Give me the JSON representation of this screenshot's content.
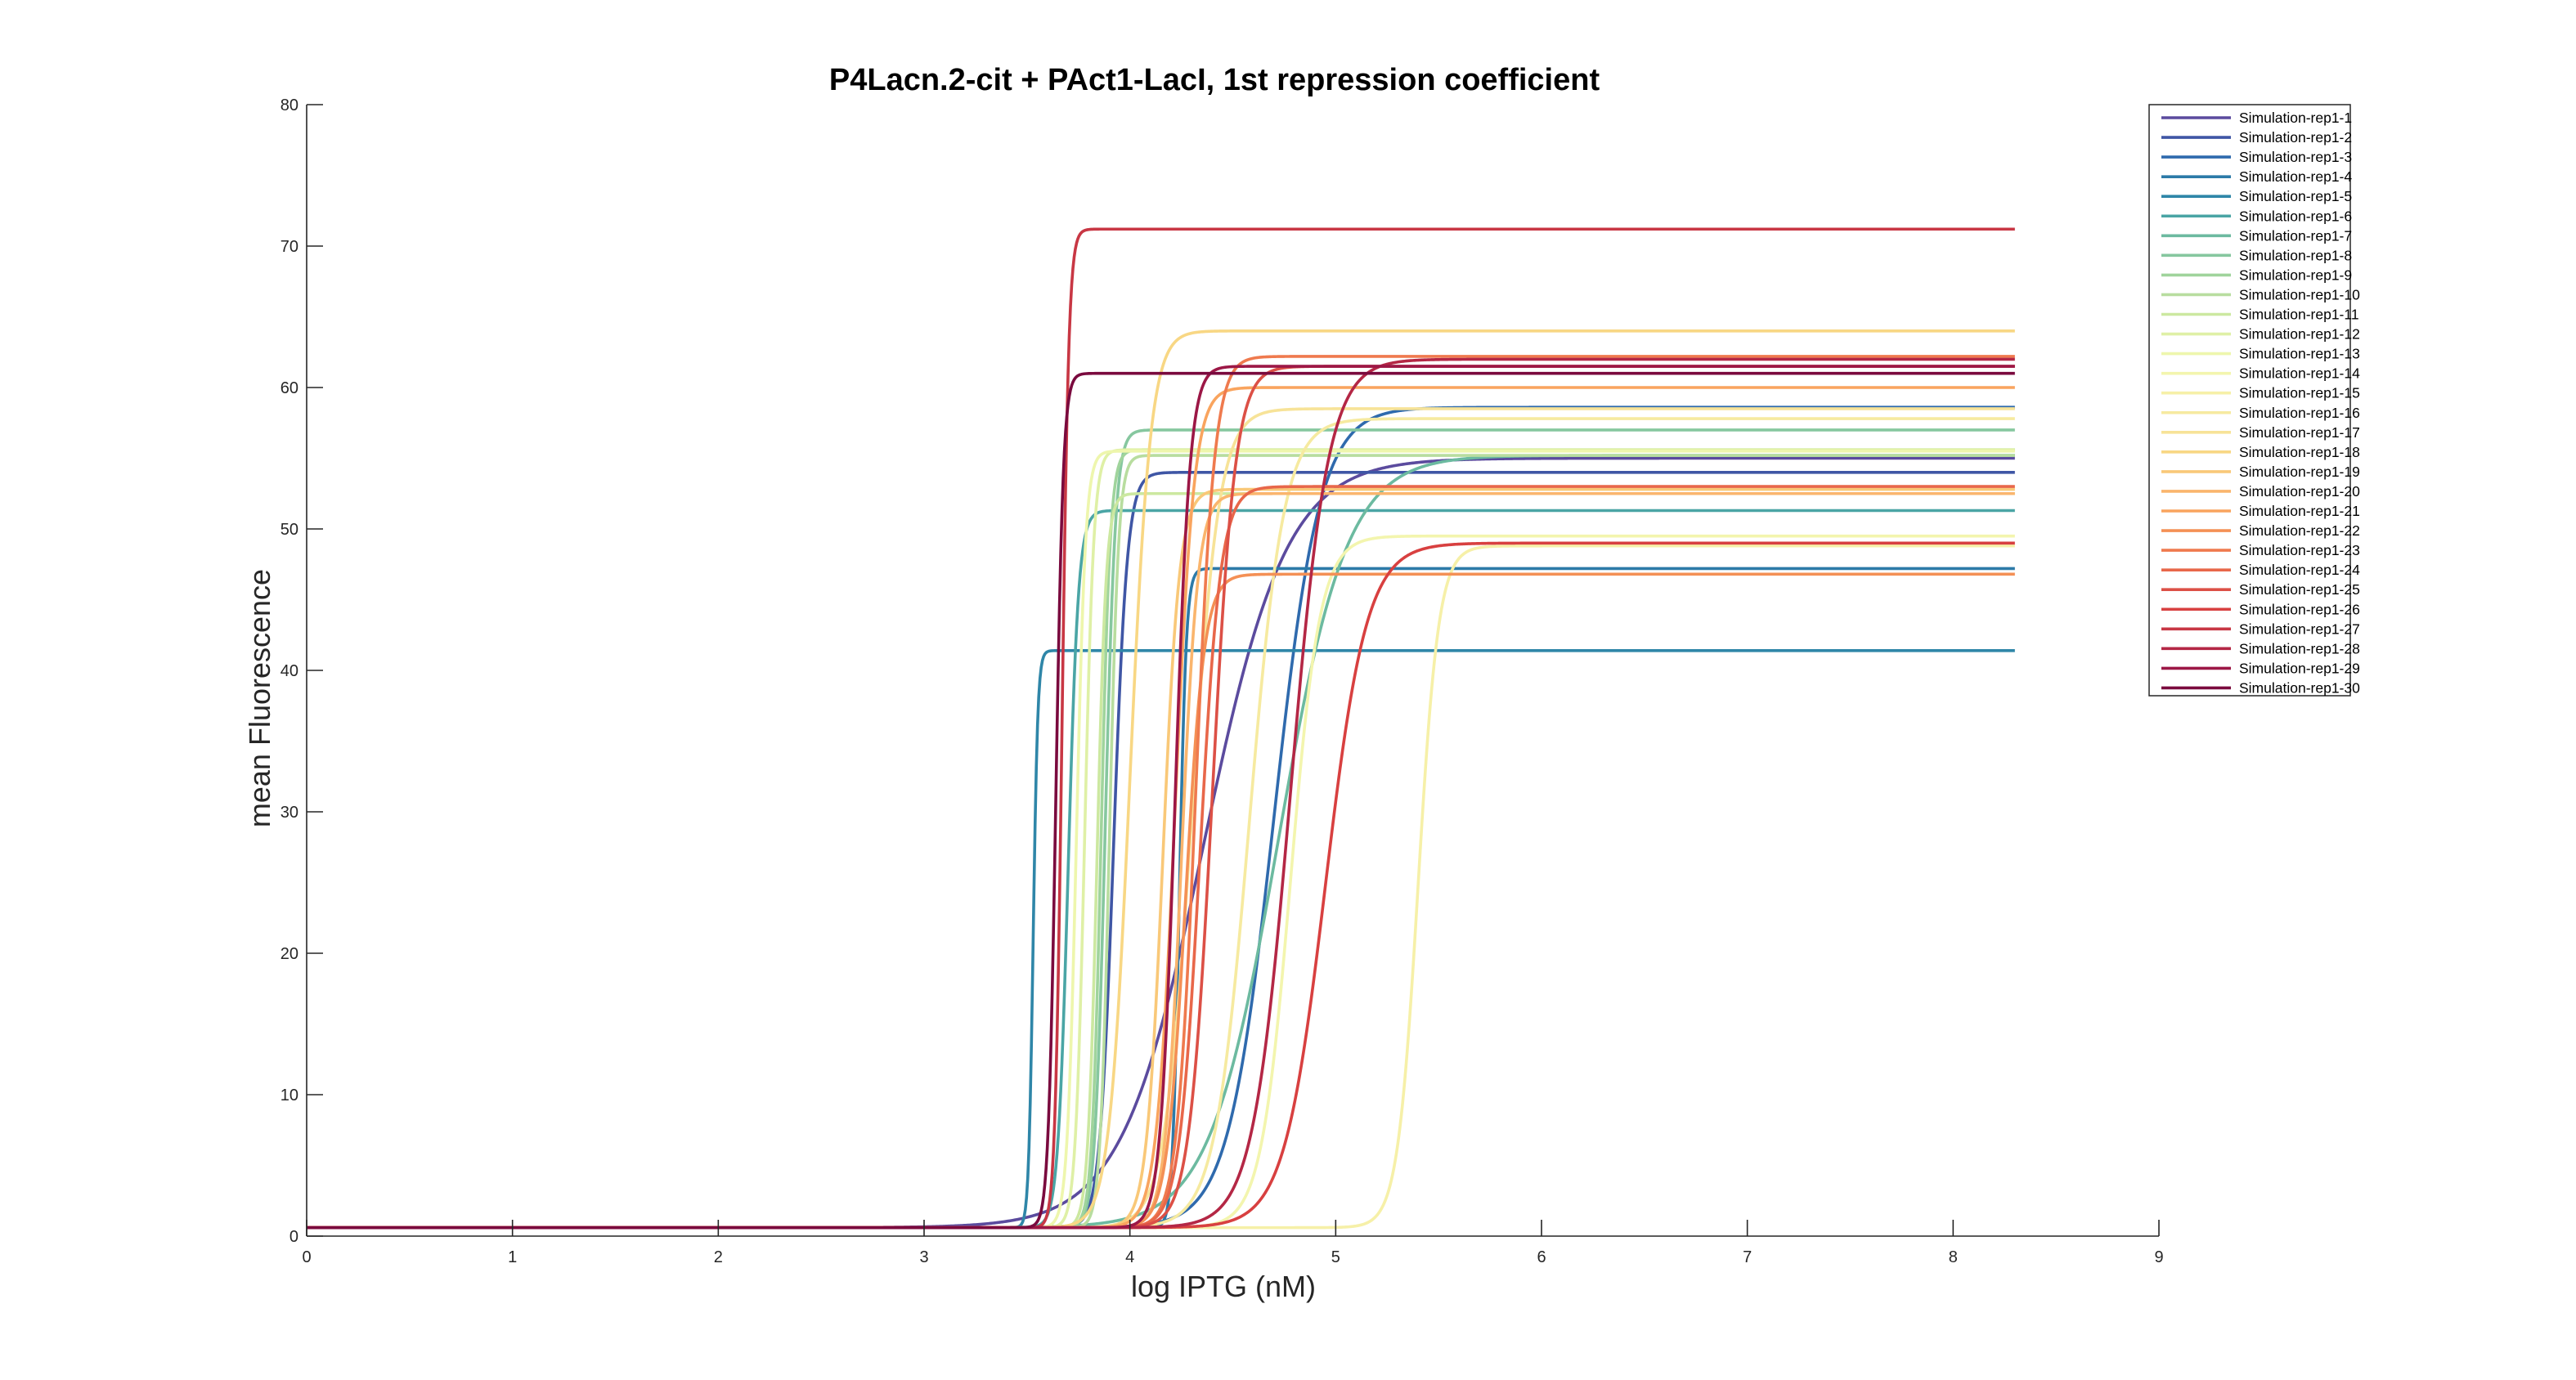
{
  "chart_data": {
    "type": "line",
    "title": "P4Lacn.2-cit + PAct1-LacI, 1st repression coefficient",
    "xlabel": "log IPTG (nM)",
    "ylabel": "mean Fluorescence",
    "xlim": [
      0,
      9
    ],
    "ylim": [
      0,
      80
    ],
    "xticks": [
      "0",
      "1",
      "2",
      "3",
      "4",
      "5",
      "6",
      "7",
      "8",
      "9"
    ],
    "yticks": [
      "0",
      "10",
      "20",
      "30",
      "40",
      "50",
      "60",
      "70",
      "80"
    ],
    "grid": false,
    "legend_position": "top-right",
    "x_end": 8.3,
    "baseline": 0.6,
    "series": [
      {
        "name": "Simulation-rep1-1",
        "color": "#5b4b9e",
        "midpoint": 4.36,
        "steepness": 5,
        "plateau": 55.0
      },
      {
        "name": "Simulation-rep1-2",
        "color": "#3f56a5",
        "midpoint": 3.92,
        "steepness": 30,
        "plateau": 54.0
      },
      {
        "name": "Simulation-rep1-3",
        "color": "#2f6aad",
        "midpoint": 4.7,
        "steepness": 9,
        "plateau": 58.6
      },
      {
        "name": "Simulation-rep1-4",
        "color": "#2c7aa8",
        "midpoint": 4.24,
        "steepness": 60,
        "plateau": 47.2
      },
      {
        "name": "Simulation-rep1-5",
        "color": "#2f86a8",
        "midpoint": 3.53,
        "steepness": 90,
        "plateau": 41.4
      },
      {
        "name": "Simulation-rep1-6",
        "color": "#4aa5a5",
        "midpoint": 3.7,
        "steepness": 40,
        "plateau": 51.3
      },
      {
        "name": "Simulation-rep1-7",
        "color": "#6cbaa0",
        "midpoint": 4.72,
        "steepness": 6,
        "plateau": 55.2
      },
      {
        "name": "Simulation-rep1-8",
        "color": "#86c79f",
        "midpoint": 3.88,
        "steepness": 40,
        "plateau": 57.0
      },
      {
        "name": "Simulation-rep1-9",
        "color": "#a0d49c",
        "midpoint": 3.86,
        "steepness": 45,
        "plateau": 55.6
      },
      {
        "name": "Simulation-rep1-10",
        "color": "#b8dd9f",
        "midpoint": 3.9,
        "steepness": 45,
        "plateau": 55.2
      },
      {
        "name": "Simulation-rep1-11",
        "color": "#cce8a0",
        "midpoint": 3.84,
        "steepness": 45,
        "plateau": 52.5
      },
      {
        "name": "Simulation-rep1-12",
        "color": "#dff0a6",
        "midpoint": 3.78,
        "steepness": 45,
        "plateau": 55.6
      },
      {
        "name": "Simulation-rep1-13",
        "color": "#eef6ad",
        "midpoint": 3.74,
        "steepness": 45,
        "plateau": 55.5
      },
      {
        "name": "Simulation-rep1-14",
        "color": "#f3f5ae",
        "midpoint": 4.78,
        "steepness": 14,
        "plateau": 49.5
      },
      {
        "name": "Simulation-rep1-15",
        "color": "#f6f0a8",
        "midpoint": 5.4,
        "steepness": 20,
        "plateau": 48.8
      },
      {
        "name": "Simulation-rep1-16",
        "color": "#f6eaa0",
        "midpoint": 4.58,
        "steepness": 12,
        "plateau": 57.8
      },
      {
        "name": "Simulation-rep1-17",
        "color": "#f7e398",
        "midpoint": 4.3,
        "steepness": 15,
        "plateau": 58.5
      },
      {
        "name": "Simulation-rep1-18",
        "color": "#f8d784",
        "midpoint": 4.0,
        "steepness": 20,
        "plateau": 64.0
      },
      {
        "name": "Simulation-rep1-19",
        "color": "#f9c878",
        "midpoint": 4.16,
        "steepness": 25,
        "plateau": 52.8
      },
      {
        "name": "Simulation-rep1-20",
        "color": "#fab56d",
        "midpoint": 4.25,
        "steepness": 25,
        "plateau": 52.5
      },
      {
        "name": "Simulation-rep1-21",
        "color": "#f9a45e",
        "midpoint": 4.22,
        "steepness": 22,
        "plateau": 60.0
      },
      {
        "name": "Simulation-rep1-22",
        "color": "#f49055",
        "midpoint": 4.27,
        "steepness": 22,
        "plateau": 46.8
      },
      {
        "name": "Simulation-rep1-23",
        "color": "#ef7a4e",
        "midpoint": 4.32,
        "steepness": 22,
        "plateau": 62.2
      },
      {
        "name": "Simulation-rep1-24",
        "color": "#e8674a",
        "midpoint": 4.34,
        "steepness": 20,
        "plateau": 53.0
      },
      {
        "name": "Simulation-rep1-25",
        "color": "#dc5046",
        "midpoint": 4.4,
        "steepness": 18,
        "plateau": 61.5
      },
      {
        "name": "Simulation-rep1-26",
        "color": "#d84040",
        "midpoint": 4.95,
        "steepness": 10,
        "plateau": 49.0
      },
      {
        "name": "Simulation-rep1-27",
        "color": "#c83744",
        "midpoint": 3.67,
        "steepness": 60,
        "plateau": 71.2
      },
      {
        "name": "Simulation-rep1-28",
        "color": "#b42745",
        "midpoint": 4.78,
        "steepness": 11,
        "plateau": 62.0
      },
      {
        "name": "Simulation-rep1-29",
        "color": "#9c1746",
        "midpoint": 4.22,
        "steepness": 28,
        "plateau": 61.5
      },
      {
        "name": "Simulation-rep1-30",
        "color": "#7a0a3e",
        "midpoint": 3.64,
        "steepness": 55,
        "plateau": 61.0
      }
    ]
  }
}
